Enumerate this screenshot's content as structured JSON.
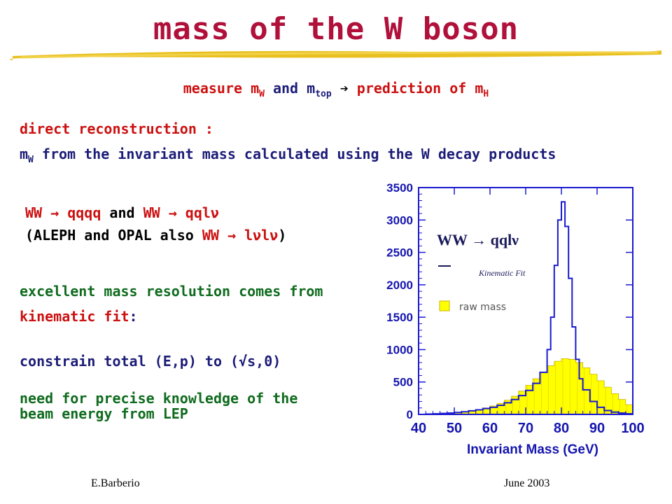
{
  "title": "mass of the W boson",
  "subtitle": {
    "p1": "measure m",
    "p1_sub": "W",
    "p2": " and m",
    "p2_sub": "top",
    "arrow": " ➔ ",
    "p3": "prediction of m",
    "p3_sub": "H"
  },
  "direct": {
    "heading": "direct reconstruction :",
    "desc_m": "m",
    "desc_sub": "W",
    "desc_rest": " from the invariant mass calculated using the W decay products"
  },
  "channels": {
    "c1": "WW → qqqq",
    "and": " and ",
    "c2": "WW → qqlν",
    "l2a": "(ALEPH and OPAL also ",
    "l2b": "WW → lνlν",
    "l2c": ")"
  },
  "resolution": {
    "line1": "excellent mass resolution comes from",
    "line2": "kinematic fit",
    "colon": ":"
  },
  "constraint": "constrain total (E,p) to (√s,0)",
  "beam": {
    "line1": "need for precise knowledge of the",
    "line2": "beam energy from LEP"
  },
  "footer": {
    "author": "E.Barberio",
    "date": "June 2003"
  },
  "chart_data": {
    "type": "area",
    "xlabel": "Invariant Mass (GeV)",
    "xlim": [
      40,
      100
    ],
    "ylim": [
      0,
      3500
    ],
    "x_ticks": [
      40,
      50,
      60,
      70,
      80,
      90,
      100
    ],
    "y_ticks": [
      0,
      500,
      1000,
      1500,
      2000,
      2500,
      3000,
      3500
    ],
    "legend": {
      "label": "WW → qqlν",
      "kinematic": "Kinematic Fit",
      "raw": "raw mass",
      "placement": "top-left"
    },
    "colors": {
      "raw": "#ffff00",
      "kinematic": "#1a1ad0",
      "axis": "#1a1ad0",
      "labels": "#1515b0"
    },
    "series": [
      {
        "name": "Kinematic Fit",
        "x": [
          40,
          42,
          44,
          46,
          48,
          50,
          52,
          54,
          56,
          58,
          60,
          62,
          64,
          66,
          68,
          70,
          72,
          74,
          76,
          77,
          78,
          79,
          80,
          81,
          82,
          83,
          84,
          85,
          86,
          88,
          90,
          92,
          94,
          96,
          98,
          100
        ],
        "values": [
          0,
          5,
          10,
          15,
          20,
          30,
          40,
          55,
          70,
          90,
          110,
          140,
          180,
          230,
          290,
          370,
          480,
          650,
          1000,
          1500,
          2300,
          3000,
          3280,
          2900,
          2100,
          1350,
          850,
          550,
          380,
          200,
          110,
          60,
          35,
          20,
          10,
          5
        ]
      },
      {
        "name": "raw mass",
        "x": [
          40,
          42,
          44,
          46,
          48,
          50,
          52,
          54,
          56,
          58,
          60,
          62,
          64,
          66,
          68,
          70,
          72,
          74,
          76,
          78,
          80,
          82,
          84,
          86,
          88,
          90,
          92,
          94,
          96,
          98,
          100
        ],
        "values": [
          0,
          5,
          10,
          15,
          20,
          30,
          40,
          55,
          75,
          100,
          130,
          170,
          220,
          280,
          360,
          450,
          550,
          650,
          750,
          820,
          860,
          850,
          800,
          720,
          620,
          520,
          420,
          320,
          230,
          150,
          80
        ]
      }
    ]
  }
}
